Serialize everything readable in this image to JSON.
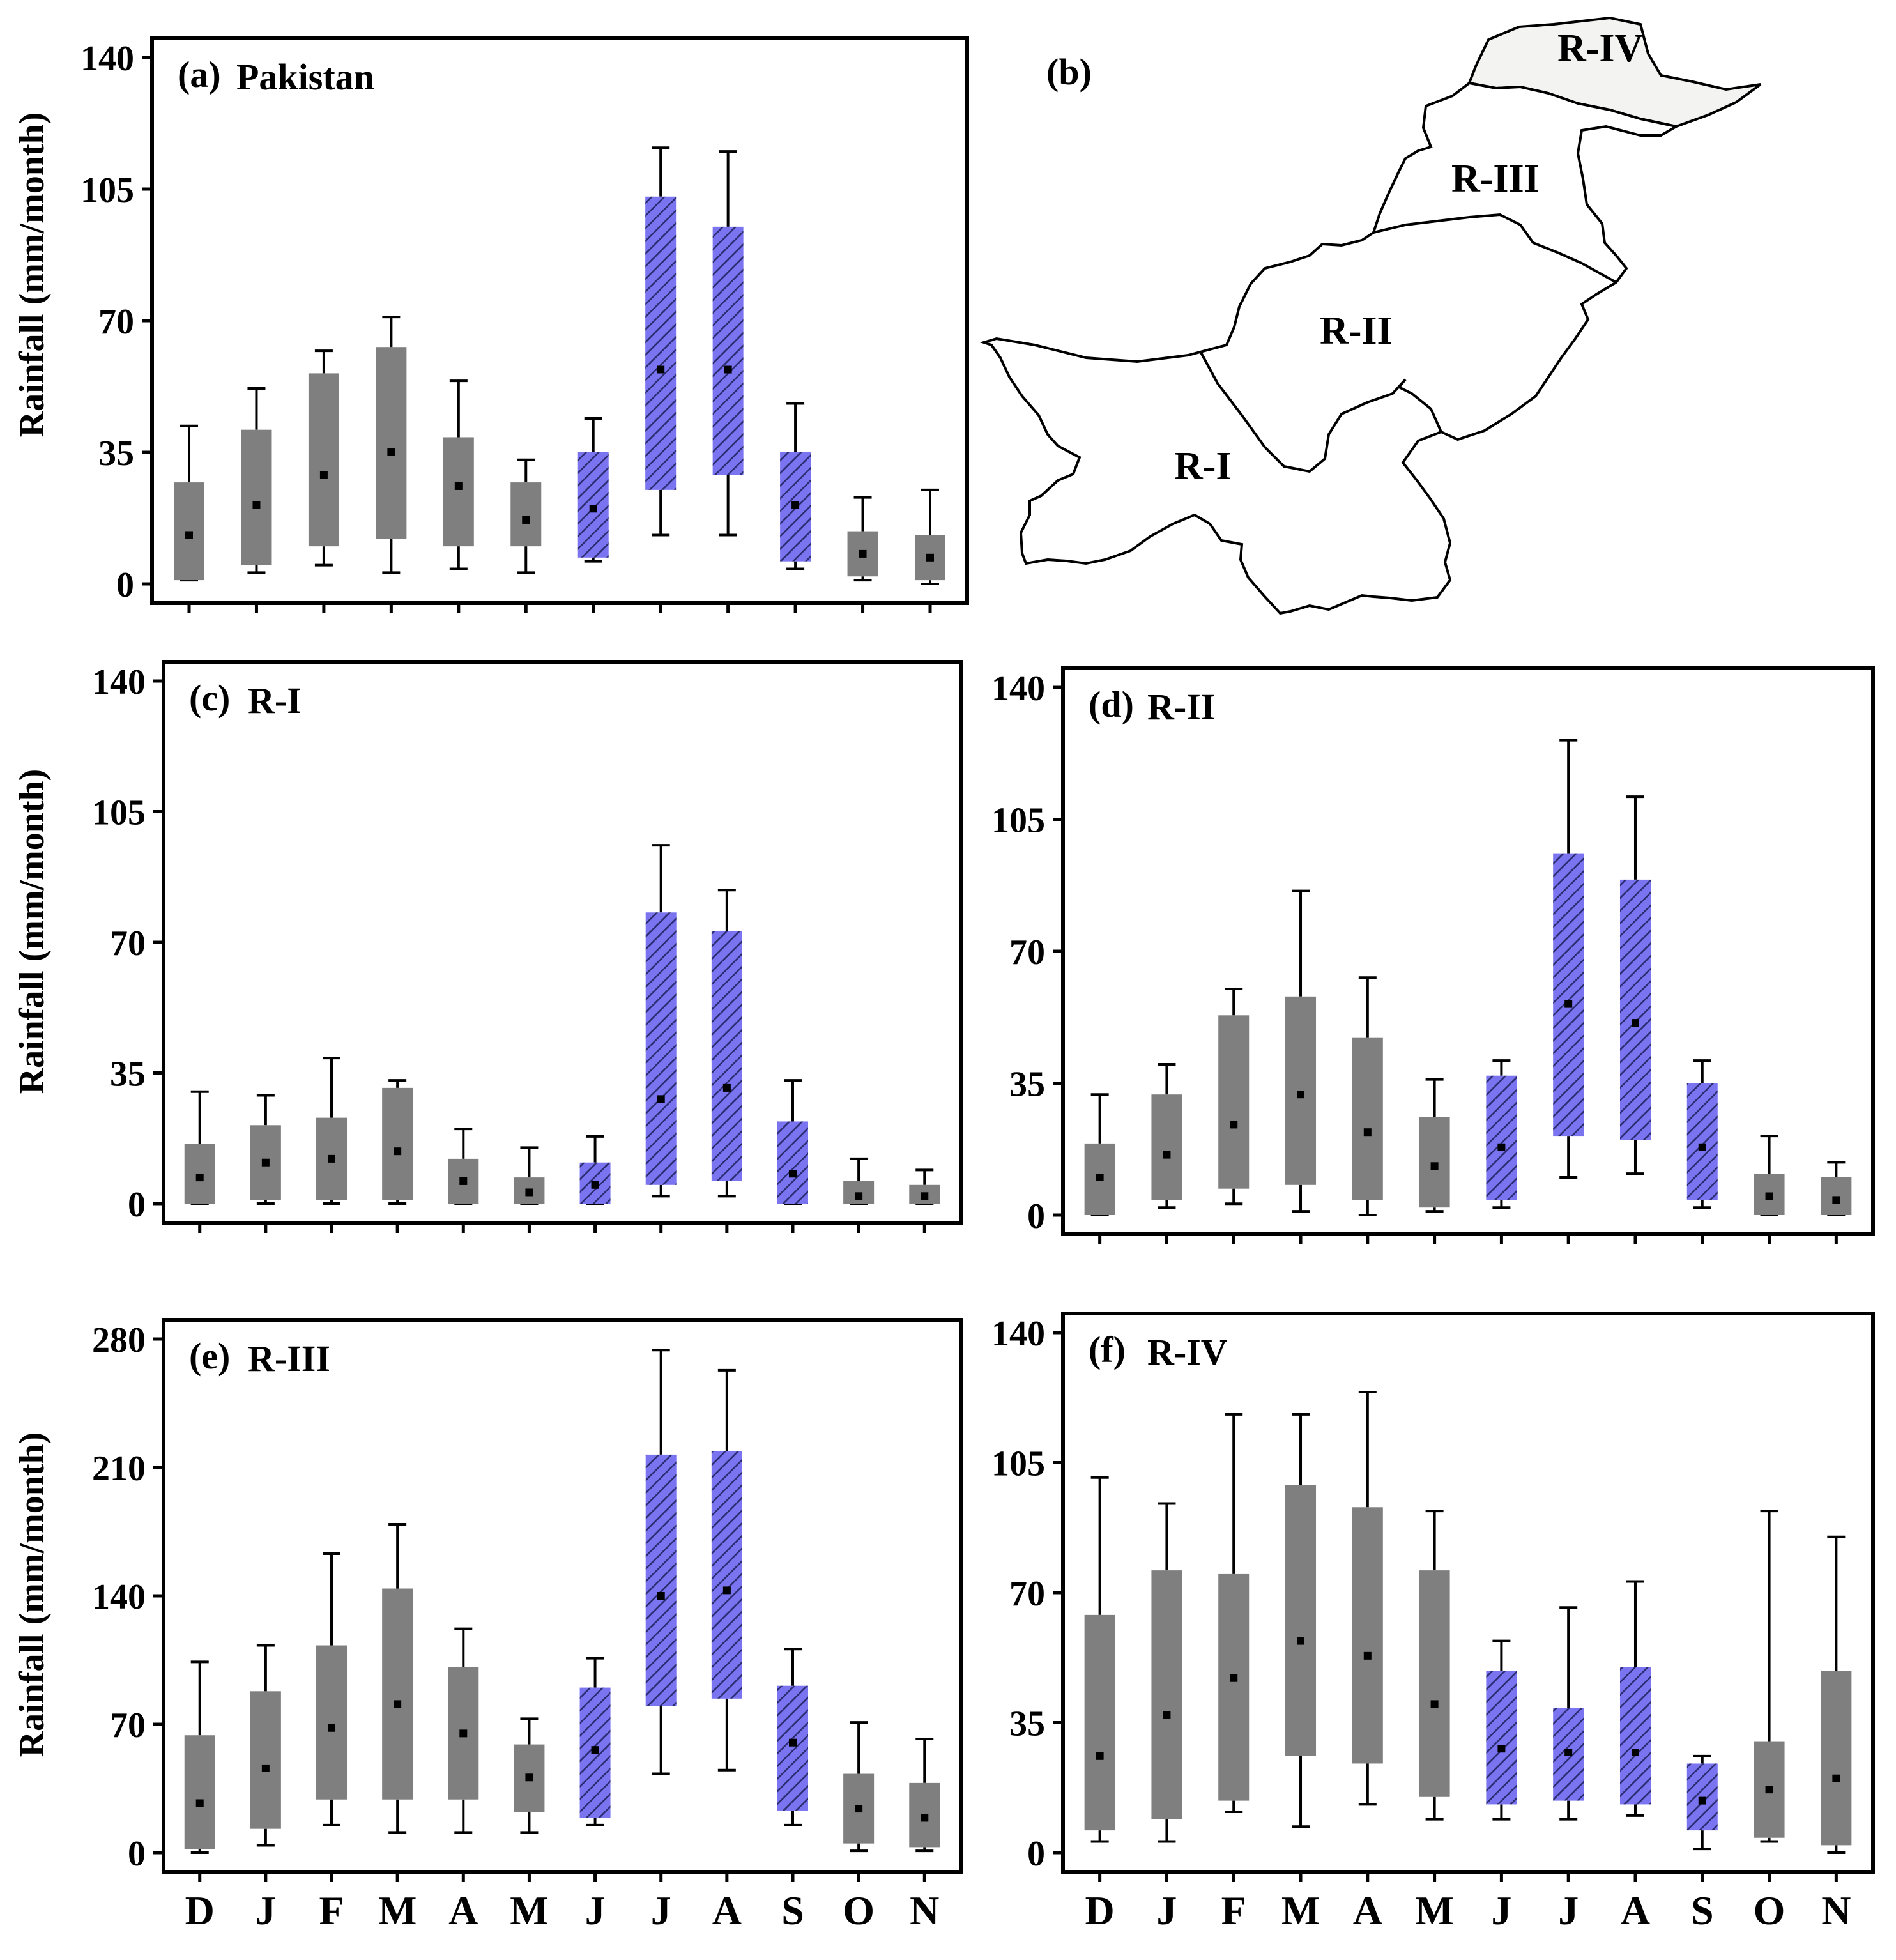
{
  "figure": {
    "colors": {
      "dry": "#7f7f7f",
      "monsoon": "#7b74f0",
      "monsoon_hatch": "#2b2b70",
      "frame": "#000000"
    },
    "monsoon_months_index": [
      6,
      7,
      8,
      9
    ]
  },
  "map": {
    "label": "(b)",
    "regions": [
      "R-I",
      "R-II",
      "R-III",
      "R-IV"
    ]
  },
  "chart_data": [
    {
      "id": "a",
      "type": "box",
      "label": "(a)",
      "title": "Pakistan",
      "ylabel": "Rainfall (mm/month)",
      "ylim": [
        0,
        140
      ],
      "yticks": [
        "0",
        "35",
        "70",
        "105",
        "140"
      ],
      "categories": [
        "D",
        "J",
        "F",
        "M",
        "A",
        "M",
        "J",
        "J",
        "A",
        "S",
        "O",
        "N"
      ],
      "show_xlabels": false,
      "boxes": [
        {
          "wmin": 1,
          "q1": 1,
          "q3": 27,
          "wmax": 42,
          "median": 13
        },
        {
          "wmin": 3,
          "q1": 5,
          "q3": 41,
          "wmax": 52,
          "median": 21
        },
        {
          "wmin": 5,
          "q1": 10,
          "q3": 56,
          "wmax": 62,
          "median": 29
        },
        {
          "wmin": 3,
          "q1": 12,
          "q3": 63,
          "wmax": 71,
          "median": 35
        },
        {
          "wmin": 4,
          "q1": 10,
          "q3": 39,
          "wmax": 54,
          "median": 26
        },
        {
          "wmin": 3,
          "q1": 10,
          "q3": 27,
          "wmax": 33,
          "median": 17
        },
        {
          "wmin": 6,
          "q1": 7,
          "q3": 35,
          "wmax": 44,
          "median": 20
        },
        {
          "wmin": 13,
          "q1": 25,
          "q3": 103,
          "wmax": 116,
          "median": 57
        },
        {
          "wmin": 13,
          "q1": 29,
          "q3": 95,
          "wmax": 115,
          "median": 57
        },
        {
          "wmin": 4,
          "q1": 6,
          "q3": 35,
          "wmax": 48,
          "median": 21
        },
        {
          "wmin": 1,
          "q1": 2,
          "q3": 14,
          "wmax": 23,
          "median": 8
        },
        {
          "wmin": 0,
          "q1": 1,
          "q3": 13,
          "wmax": 25,
          "median": 7
        }
      ]
    },
    {
      "id": "c",
      "type": "box",
      "label": "(c)",
      "title": "R-I",
      "ylabel": "Rainfall (mm/month)",
      "ylim": [
        0,
        140
      ],
      "yticks": [
        "0",
        "35",
        "70",
        "105",
        "140"
      ],
      "categories": [
        "D",
        "J",
        "F",
        "M",
        "A",
        "M",
        "J",
        "J",
        "A",
        "S",
        "O",
        "N"
      ],
      "show_xlabels": false,
      "boxes": [
        {
          "wmin": 0,
          "q1": 0,
          "q3": 16,
          "wmax": 30,
          "median": 7
        },
        {
          "wmin": 0,
          "q1": 1,
          "q3": 21,
          "wmax": 29,
          "median": 11
        },
        {
          "wmin": 0,
          "q1": 1,
          "q3": 23,
          "wmax": 39,
          "median": 12
        },
        {
          "wmin": 0,
          "q1": 1,
          "q3": 31,
          "wmax": 33,
          "median": 14
        },
        {
          "wmin": 0,
          "q1": 0,
          "q3": 12,
          "wmax": 20,
          "median": 6
        },
        {
          "wmin": 0,
          "q1": 0,
          "q3": 7,
          "wmax": 15,
          "median": 3
        },
        {
          "wmin": 0,
          "q1": 0,
          "q3": 11,
          "wmax": 18,
          "median": 5
        },
        {
          "wmin": 2,
          "q1": 5,
          "q3": 78,
          "wmax": 96,
          "median": 28
        },
        {
          "wmin": 2,
          "q1": 6,
          "q3": 73,
          "wmax": 84,
          "median": 31
        },
        {
          "wmin": 0,
          "q1": 0,
          "q3": 22,
          "wmax": 33,
          "median": 8
        },
        {
          "wmin": 0,
          "q1": 0,
          "q3": 6,
          "wmax": 12,
          "median": 2
        },
        {
          "wmin": 0,
          "q1": 0,
          "q3": 5,
          "wmax": 9,
          "median": 2
        }
      ]
    },
    {
      "id": "d",
      "type": "box",
      "label": "(d)",
      "title": "R-II",
      "ylabel": "",
      "ylim": [
        0,
        140
      ],
      "yticks": [
        "0",
        "35",
        "70",
        "105",
        "140"
      ],
      "categories": [
        "D",
        "J",
        "F",
        "M",
        "A",
        "M",
        "J",
        "J",
        "A",
        "S",
        "O",
        "N"
      ],
      "show_xlabels": false,
      "boxes": [
        {
          "wmin": 0,
          "q1": 0,
          "q3": 19,
          "wmax": 32,
          "median": 10
        },
        {
          "wmin": 2,
          "q1": 4,
          "q3": 32,
          "wmax": 40,
          "median": 16
        },
        {
          "wmin": 3,
          "q1": 7,
          "q3": 53,
          "wmax": 60,
          "median": 24
        },
        {
          "wmin": 1,
          "q1": 8,
          "q3": 58,
          "wmax": 86,
          "median": 32
        },
        {
          "wmin": 0,
          "q1": 4,
          "q3": 47,
          "wmax": 63,
          "median": 22
        },
        {
          "wmin": 1,
          "q1": 2,
          "q3": 26,
          "wmax": 36,
          "median": 13
        },
        {
          "wmin": 2,
          "q1": 4,
          "q3": 37,
          "wmax": 41,
          "median": 18
        },
        {
          "wmin": 10,
          "q1": 21,
          "q3": 96,
          "wmax": 126,
          "median": 56
        },
        {
          "wmin": 11,
          "q1": 20,
          "q3": 89,
          "wmax": 111,
          "median": 51
        },
        {
          "wmin": 2,
          "q1": 4,
          "q3": 35,
          "wmax": 41,
          "median": 18
        },
        {
          "wmin": 0,
          "q1": 0,
          "q3": 11,
          "wmax": 21,
          "median": 5
        },
        {
          "wmin": 0,
          "q1": 0,
          "q3": 10,
          "wmax": 14,
          "median": 4
        }
      ]
    },
    {
      "id": "e",
      "type": "box",
      "label": "(e)",
      "title": "R-III",
      "ylabel": "Rainfall (mm/month)",
      "ylim": [
        0,
        280
      ],
      "yticks": [
        "0",
        "70",
        "140",
        "210",
        "280"
      ],
      "categories": [
        "D",
        "J",
        "F",
        "M",
        "A",
        "M",
        "J",
        "J",
        "A",
        "S",
        "O",
        "N"
      ],
      "show_xlabels": true,
      "boxes": [
        {
          "wmin": 0,
          "q1": 2,
          "q3": 64,
          "wmax": 104,
          "median": 27
        },
        {
          "wmin": 4,
          "q1": 13,
          "q3": 88,
          "wmax": 113,
          "median": 46
        },
        {
          "wmin": 15,
          "q1": 29,
          "q3": 113,
          "wmax": 163,
          "median": 68
        },
        {
          "wmin": 11,
          "q1": 29,
          "q3": 144,
          "wmax": 179,
          "median": 81
        },
        {
          "wmin": 11,
          "q1": 29,
          "q3": 101,
          "wmax": 122,
          "median": 65
        },
        {
          "wmin": 11,
          "q1": 22,
          "q3": 59,
          "wmax": 73,
          "median": 41
        },
        {
          "wmin": 15,
          "q1": 19,
          "q3": 90,
          "wmax": 106,
          "median": 56
        },
        {
          "wmin": 43,
          "q1": 80,
          "q3": 217,
          "wmax": 274,
          "median": 140
        },
        {
          "wmin": 45,
          "q1": 84,
          "q3": 219,
          "wmax": 263,
          "median": 143
        },
        {
          "wmin": 15,
          "q1": 23,
          "q3": 91,
          "wmax": 111,
          "median": 60
        },
        {
          "wmin": 1,
          "q1": 5,
          "q3": 43,
          "wmax": 71,
          "median": 24
        },
        {
          "wmin": 1,
          "q1": 3,
          "q3": 38,
          "wmax": 62,
          "median": 19
        }
      ]
    },
    {
      "id": "f",
      "type": "box",
      "label": "(f)",
      "title": "R-IV",
      "ylabel": "",
      "ylim": [
        0,
        140
      ],
      "yticks": [
        "0",
        "35",
        "70",
        "105",
        "140"
      ],
      "categories": [
        "D",
        "J",
        "F",
        "M",
        "A",
        "M",
        "J",
        "J",
        "A",
        "S",
        "O",
        "N"
      ],
      "show_xlabels": true,
      "boxes": [
        {
          "wmin": 3,
          "q1": 6,
          "q3": 64,
          "wmax": 101,
          "median": 26
        },
        {
          "wmin": 3,
          "q1": 9,
          "q3": 76,
          "wmax": 94,
          "median": 37
        },
        {
          "wmin": 11,
          "q1": 14,
          "q3": 75,
          "wmax": 118,
          "median": 47
        },
        {
          "wmin": 7,
          "q1": 26,
          "q3": 99,
          "wmax": 118,
          "median": 57
        },
        {
          "wmin": 13,
          "q1": 24,
          "q3": 93,
          "wmax": 124,
          "median": 53
        },
        {
          "wmin": 9,
          "q1": 15,
          "q3": 76,
          "wmax": 92,
          "median": 40
        },
        {
          "wmin": 9,
          "q1": 13,
          "q3": 49,
          "wmax": 57,
          "median": 28
        },
        {
          "wmin": 9,
          "q1": 14,
          "q3": 39,
          "wmax": 66,
          "median": 27
        },
        {
          "wmin": 10,
          "q1": 13,
          "q3": 50,
          "wmax": 73,
          "median": 27
        },
        {
          "wmin": 1,
          "q1": 6,
          "q3": 24,
          "wmax": 26,
          "median": 14
        },
        {
          "wmin": 3,
          "q1": 4,
          "q3": 30,
          "wmax": 92,
          "median": 17
        },
        {
          "wmin": 0,
          "q1": 2,
          "q3": 49,
          "wmax": 85,
          "median": 20
        }
      ]
    }
  ]
}
